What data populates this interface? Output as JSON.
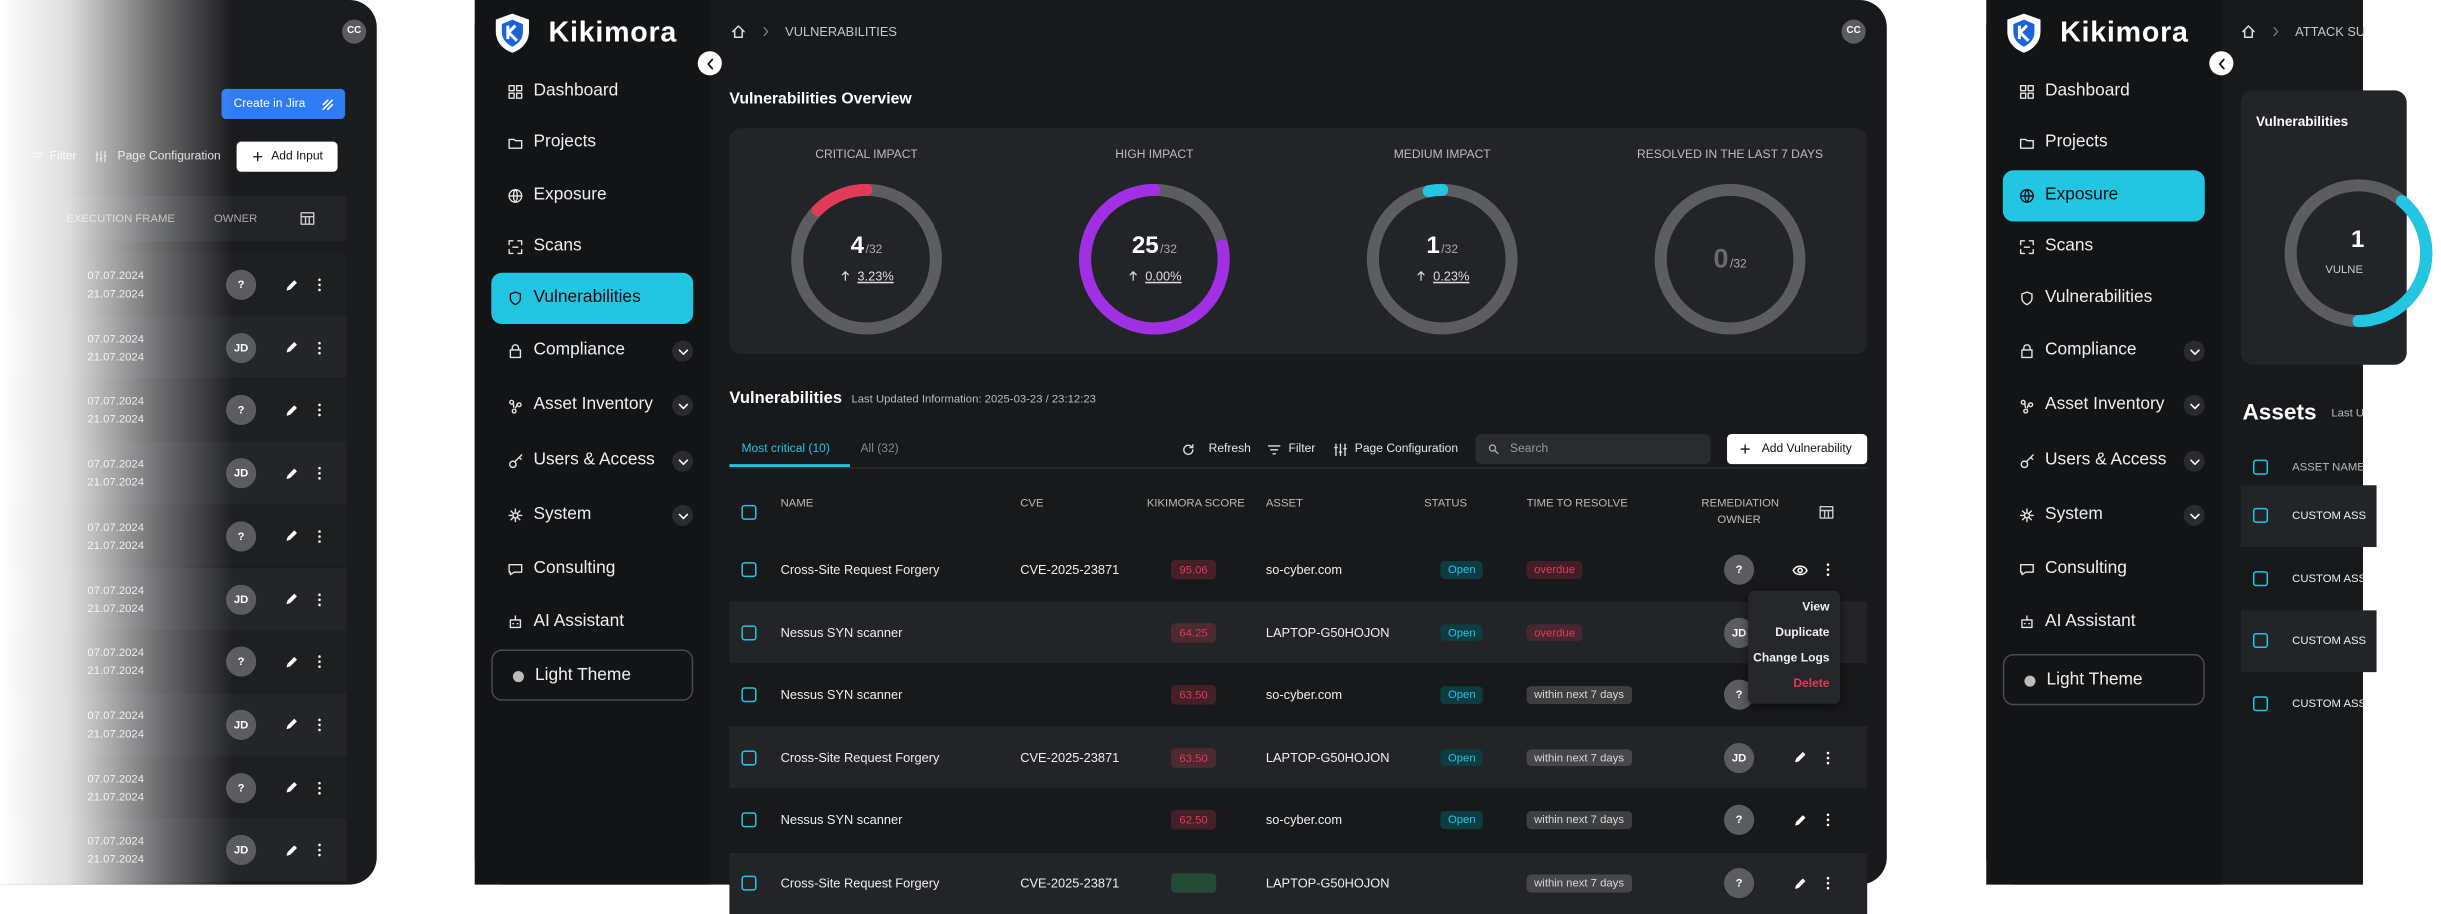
{
  "left_panel": {
    "avatar": "CC",
    "create_button": "Create in Jira",
    "toolbar": [
      "Filter",
      "Page Configuration"
    ],
    "add_button": "Add Input",
    "columns": [
      "EXECUTION FRAME",
      "OWNER"
    ],
    "rows": [
      {
        "dates": [
          "07.07.2024",
          "21.07.2024"
        ],
        "owner": "?"
      },
      {
        "dates": [
          "07.07.2024",
          "21.07.2024"
        ],
        "owner": "JD"
      },
      {
        "dates": [
          "07.07.2024",
          "21.07.2024"
        ],
        "owner": "?"
      },
      {
        "dates": [
          "07.07.2024",
          "21.07.2024"
        ],
        "owner": "JD"
      },
      {
        "dates": [
          "07.07.2024",
          "21.07.2024"
        ],
        "owner": "?"
      },
      {
        "dates": [
          "07.07.2024",
          "21.07.2024"
        ],
        "owner": "JD"
      },
      {
        "dates": [
          "07.07.2024",
          "21.07.2024"
        ],
        "owner": "?"
      },
      {
        "dates": [
          "07.07.2024",
          "21.07.2024"
        ],
        "owner": "JD"
      },
      {
        "dates": [
          "07.07.2024",
          "21.07.2024"
        ],
        "owner": "?"
      },
      {
        "dates": [
          "07.07.2024",
          "21.07.2024"
        ],
        "owner": "JD"
      }
    ]
  },
  "sidebar": {
    "brand": "Kikimora",
    "items": [
      "Dashboard",
      "Projects",
      "Exposure",
      "Scans",
      "Vulnerabilities",
      "Compliance",
      "Asset Inventory",
      "Users & Access",
      "System",
      "Consulting",
      "AI Assistant"
    ],
    "active": 4,
    "theme_button": "Light Theme"
  },
  "breadcrumb": "VULNERABILITIES",
  "avatar": "CC",
  "overview": {
    "title": "Vulnerabilities Overview",
    "cards": [
      {
        "label": "CRITICAL IMPACT",
        "value": 4,
        "total": {
          "value": 32,
          "label": "/32"
        },
        "change": "3.23%",
        "color": "#e3395a"
      },
      {
        "label": "HIGH IMPACT",
        "value": 25,
        "total": {
          "value": 32,
          "label": "/32"
        },
        "change": "0.00%",
        "color": "#a12fe3"
      },
      {
        "label": "MEDIUM IMPACT",
        "value": 1,
        "total": {
          "value": 32,
          "label": "/32"
        },
        "change": "0.23%",
        "color": "#22c6e3"
      },
      {
        "label": "RESOLVED IN THE LAST 7 DAYS",
        "value": 0,
        "total": {
          "value": 32,
          "label": "/32"
        },
        "color": "#22c6e3"
      }
    ]
  },
  "table": {
    "title": "Vulnerabilities",
    "updated": "Last Updated Information: 2025-03-23 / 23:12:23",
    "tabs": [
      "Most critical (10)",
      "All (32)"
    ],
    "actions": [
      "Refresh",
      "Filter",
      "Page Configuration"
    ],
    "search": "Search",
    "add_button": "Add Vulnerability",
    "columns": [
      "NAME",
      "CVE",
      "KIKIMORA SCORE",
      "ASSET",
      "STATUS",
      "TIME TO RESOLVE",
      "REMEDIATION OWNER"
    ],
    "rows": [
      {
        "name": "Cross-Site Request Forgery",
        "cve": "CVE-2025-23871",
        "score": "95.06",
        "score_color": "#e3395a",
        "asset": "so-cyber.com",
        "status": "Open",
        "ttr": "overdue",
        "ttr_color": "#e3395a",
        "owner": "?"
      },
      {
        "name": "Nessus SYN scanner",
        "score": "64.25",
        "score_color": "#e3395a",
        "asset": "LAPTOP-G50HOJON",
        "status": "Open",
        "ttr": "overdue",
        "ttr_color": "#e3395a",
        "owner": "JD"
      },
      {
        "name": "Nessus SYN scanner",
        "score": "63.50",
        "score_color": "#e3395a",
        "asset": "so-cyber.com",
        "status": "Open",
        "ttr": "within next 7 days",
        "ttr_color": "#d8d8d8",
        "owner": "?"
      },
      {
        "name": "Cross-Site Request Forgery",
        "cve": "CVE-2025-23871",
        "score": "63.50",
        "score_color": "#e3395a",
        "asset": "LAPTOP-G50HOJON",
        "status": "Open",
        "ttr": "within next 7 days",
        "ttr_color": "#d8d8d8",
        "owner": "JD"
      },
      {
        "name": "Nessus SYN scanner",
        "score": "62.50",
        "score_color": "#e3395a",
        "asset": "so-cyber.com",
        "status": "Open",
        "ttr": "within next 7 days",
        "ttr_color": "#d8d8d8",
        "owner": "?"
      },
      {
        "name": "Cross-Site Request Forgery",
        "cve": "CVE-2025-23871",
        "score_color": "#2ecc71",
        "asset": "LAPTOP-G50HOJON",
        "ttr": "within next 7 days",
        "ttr_color": "#d8d8d8",
        "owner": "?"
      }
    ],
    "menu": [
      "View",
      "Duplicate",
      "Change Logs",
      "Delete"
    ]
  },
  "right_panel": {
    "active": 2,
    "breadcrumb": "ATTACK SU",
    "card_title": "Vulnerabilities",
    "gauge_value": "1",
    "gauge_label": "VULNE",
    "section_title": "Assets",
    "section_note": "Last U",
    "column": "ASSET NAME",
    "rows": [
      "CUSTOM ASS",
      "CUSTOM ASS",
      "CUSTOM ASS",
      "CUSTOM ASS"
    ]
  }
}
